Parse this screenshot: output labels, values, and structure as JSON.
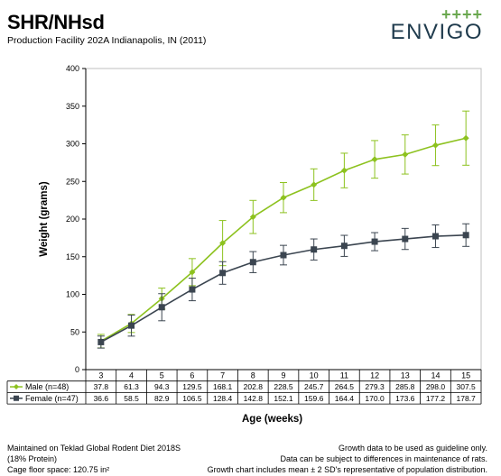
{
  "header": {
    "title": "SHR/NHsd",
    "subtitle": "Production Facility 202A Indianapolis, IN (2011)",
    "logo_text": "ENVIGO",
    "logo_marks": "++++"
  },
  "footer": {
    "left": [
      "Maintained on Teklad Global Rodent Diet 2018S",
      "(18% Protein)",
      "Cage floor space: 120.75 in²"
    ],
    "right": [
      "Growth data to be used as guideline only.",
      "Data can be subject to differences in maintenance of rats.",
      "Growth chart includes mean ± 2 SD's representative of population distribution."
    ]
  },
  "colors": {
    "male": "#8dc21f",
    "female": "#3b4550",
    "grid": "#bfbfbf"
  },
  "chart_data": {
    "type": "line",
    "title": "SHR/NHsd",
    "xlabel": "Age (weeks)",
    "ylabel": "Weight (grams)",
    "ylim": [
      0,
      400
    ],
    "yticks": [
      0,
      50,
      100,
      150,
      200,
      250,
      300,
      350,
      400
    ],
    "grid": false,
    "categories": [
      "3",
      "4",
      "5",
      "6",
      "7",
      "8",
      "9",
      "10",
      "11",
      "12",
      "13",
      "14",
      "15"
    ],
    "series": [
      {
        "name": "Male (n=48)",
        "values": [
          37.8,
          61.3,
          94.3,
          129.5,
          168.1,
          202.8,
          228.5,
          245.7,
          264.5,
          279.3,
          285.8,
          298.0,
          307.5
        ],
        "error": [
          9,
          12,
          14,
          18,
          30,
          22,
          20,
          21,
          23,
          25,
          26,
          27,
          36
        ],
        "marker": "diamond"
      },
      {
        "name": "Female (n=47)",
        "values": [
          36.6,
          58.5,
          82.9,
          106.5,
          128.4,
          142.8,
          152.1,
          159.6,
          164.4,
          170.0,
          173.6,
          177.2,
          178.7
        ],
        "error": [
          8,
          14,
          18,
          15,
          15,
          14,
          13,
          14,
          14,
          12,
          14,
          15,
          15
        ],
        "marker": "square"
      }
    ],
    "table_labels": [
      [
        "37.8",
        "61.3",
        "94.3",
        "129.5",
        "168.1",
        "202.8",
        "228.5",
        "245.7",
        "264.5",
        "279.3",
        "285.8",
        "298.0",
        "307.5"
      ],
      [
        "36.6",
        "58.5",
        "82.9",
        "106.5",
        "128.4",
        "142.8",
        "152.1",
        "159.6",
        "164.4",
        "170.0",
        "173.6",
        "177.2",
        "178.7"
      ]
    ]
  }
}
